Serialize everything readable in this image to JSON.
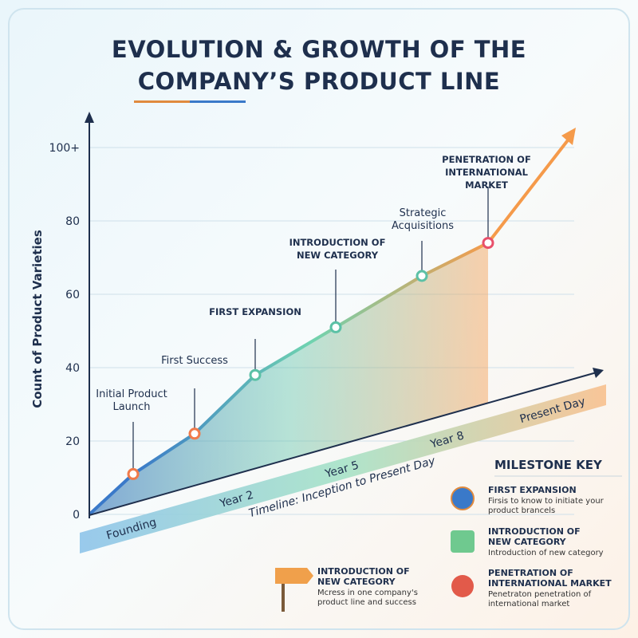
{
  "chart_data": {
    "type": "line",
    "title": "EVOLUTION & GROWTH OF THE COMPANY’S PRODUCT LINE",
    "y_label": "Count of Product Varieties",
    "x_label": "Timeline: Inception to Present Day",
    "categories": [
      "Initial Product Launch",
      "First Success",
      "FIRST EXPANSION",
      "INTRODUCTION OF NEW CATEGORY",
      "Strategic Acquisitions",
      "PENETRATION OF INTERNATIONAL MARKET"
    ],
    "values": [
      11,
      22,
      38,
      51,
      65,
      74
    ],
    "color": "#5fbf9a",
    "ylim": [
      0,
      105
    ],
    "yticks": [
      0,
      20,
      40,
      60,
      80,
      {
        "value": 100,
        "label": "100+"
      }
    ],
    "grid": true,
    "timeline": [
      "Founding",
      "Year 2",
      "Year 5",
      "Year 8",
      "Present Day"
    ]
  },
  "milestone_key": {
    "title": "MILESTONE KEY",
    "items": [
      {
        "title": "FIRST EXPANSION",
        "desc": "Firsis to know to initiate your product brancels"
      },
      {
        "title": "INTRODUCTION OF NEW CATEGORY",
        "desc": "Introduction of new category"
      },
      {
        "title": "PENETRATION OF INTERNATIONAL MARKET",
        "desc": "Penetraton penetration of international market"
      }
    ]
  },
  "signpost_note": {
    "title": "INTRODUCTION OF NEW CATEGORY",
    "desc": "Mcress in one company's product line and success"
  }
}
